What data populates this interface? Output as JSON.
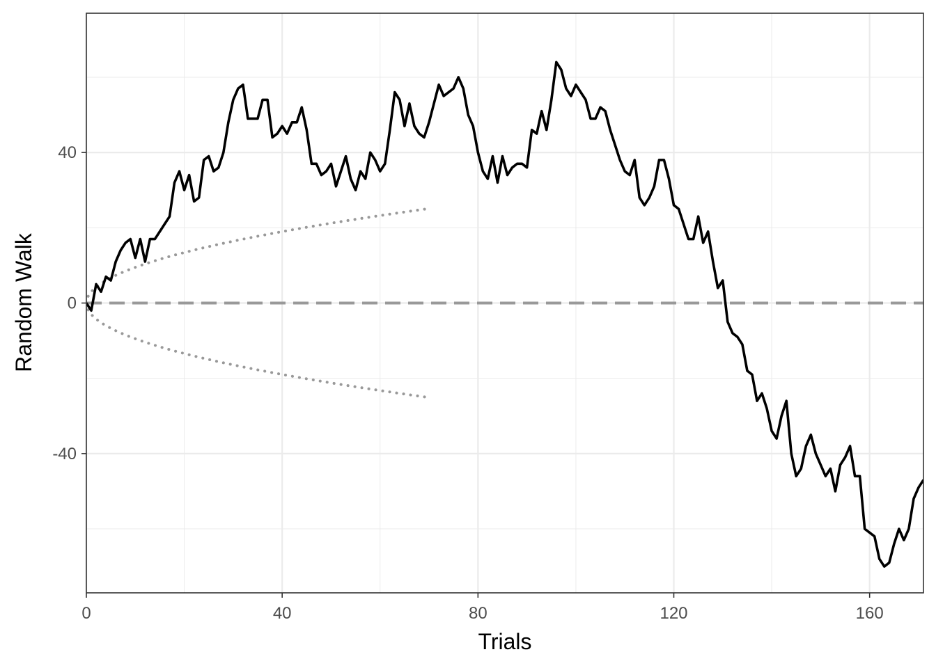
{
  "chart_data": {
    "type": "line",
    "xlabel": "Trials",
    "ylabel": "Random Walk",
    "xlim": [
      0,
      171
    ],
    "ylim": [
      -77,
      77
    ],
    "xticks": [
      0,
      40,
      80,
      120,
      160
    ],
    "yticks": [
      -40,
      0,
      40
    ],
    "grid": true,
    "legend": "none",
    "series": [
      {
        "kind": "walk",
        "color": "#000000",
        "values": [
          0,
          -2,
          5,
          3,
          7,
          6,
          11,
          14,
          16,
          17,
          12,
          17,
          11,
          17,
          17,
          19,
          21,
          23,
          32,
          35,
          30,
          34,
          27,
          28,
          38,
          39,
          35,
          36,
          40,
          48,
          54,
          57,
          58,
          49,
          49,
          49,
          54,
          54,
          44,
          45,
          47,
          45,
          48,
          48,
          52,
          46,
          37,
          37,
          34,
          35,
          37,
          31,
          35,
          39,
          33,
          30,
          35,
          33,
          40,
          38,
          35,
          37,
          46,
          56,
          54,
          47,
          53,
          47,
          45,
          44,
          48,
          53,
          58,
          55,
          56,
          57,
          60,
          57,
          50,
          47,
          40,
          35,
          33,
          39,
          32,
          39,
          34,
          36,
          37,
          37,
          36,
          46,
          45,
          51,
          46,
          54,
          64,
          62,
          57,
          55,
          58,
          56,
          54,
          49,
          49,
          52,
          51,
          46,
          42,
          38,
          35,
          34,
          38,
          28,
          26,
          28,
          31,
          38,
          38,
          33,
          26,
          25,
          21,
          17,
          17,
          23,
          16,
          19,
          11,
          4,
          6,
          -5,
          -8,
          -9,
          -11,
          -18,
          -19,
          -26,
          -24,
          -28,
          -34,
          -36,
          -30,
          -26,
          -40,
          -46,
          -44,
          -38,
          -35,
          -40,
          -43,
          -46,
          -44,
          -50,
          -43,
          -41,
          -38,
          -46,
          -46,
          -60,
          -61,
          -62,
          -68,
          -70,
          -69,
          -64,
          -60,
          -63,
          -60,
          -52,
          -49,
          -47
        ]
      },
      {
        "kind": "zero-reference",
        "style": "dashed",
        "color": "#999999",
        "value": 0
      },
      {
        "kind": "confidence-envelope",
        "style": "dotted",
        "color": "#999999",
        "formula": "±3√n"
      }
    ]
  }
}
